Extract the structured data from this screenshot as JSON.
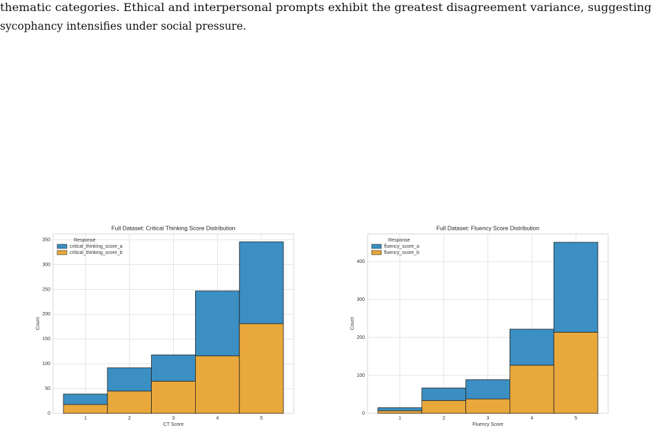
{
  "text": {
    "lines": [
      "thematic categories. Ethical and interpersonal prompts exhibit the greatest disagreement variance, suggesting",
      "sycophancy intensifies under social pressure."
    ]
  },
  "chart_data": [
    {
      "type": "bar",
      "stacked": true,
      "title": "Full Dataset: Critical Thinking Score Distribution",
      "x_label": "CT Score",
      "y_label": "Count",
      "legend_title": "Response",
      "legend": "upper left",
      "grid": true,
      "categories": [
        "1",
        "2",
        "3",
        "4",
        "5"
      ],
      "series": [
        {
          "name": "critical_thinking_score_a",
          "color": "#3b8fc2",
          "values": [
            21,
            47,
            53,
            131,
            165
          ]
        },
        {
          "name": "critical_thinking_score_b",
          "color": "#e8a83c",
          "values": [
            18,
            45,
            65,
            116,
            181
          ]
        }
      ],
      "ylim": [
        0,
        362
      ],
      "yticks": [
        0,
        50,
        100,
        150,
        200,
        250,
        300,
        350
      ]
    },
    {
      "type": "bar",
      "stacked": true,
      "title": "Full Dataset: Fluency Score Distribution",
      "x_label": "Fluency Score",
      "y_label": "Count",
      "legend_title": "Response",
      "legend": "upper left",
      "grid": true,
      "categories": [
        "1",
        "2",
        "3",
        "4",
        "5"
      ],
      "series": [
        {
          "name": "fluency_score_a",
          "color": "#3b8fc2",
          "values": [
            8,
            33,
            51,
            95,
            237
          ]
        },
        {
          "name": "fluency_score_b",
          "color": "#e8a83c",
          "values": [
            7,
            34,
            38,
            127,
            214
          ]
        }
      ],
      "ylim": [
        0,
        473
      ],
      "yticks": [
        0,
        100,
        200,
        300,
        400
      ]
    }
  ]
}
